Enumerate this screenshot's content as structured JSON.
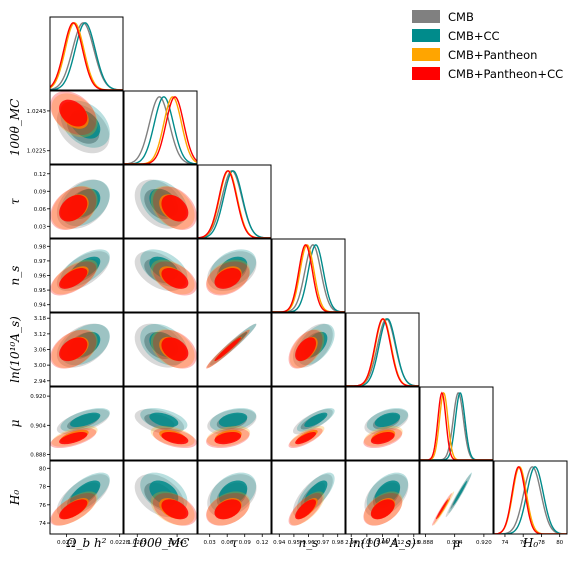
{
  "chart_data": {
    "type": "corner",
    "parameters": [
      {
        "label": "Ω_b h²",
        "xticks": [
          "0.0220",
          "0.0228"
        ],
        "yticks": [],
        "range": [
          0.02175,
          0.02285
        ],
        "tickvals": [
          0.022,
          0.0228
        ]
      },
      {
        "label": "100θ_MC",
        "xticks": [
          "1.0225",
          "1.0243"
        ],
        "yticks": [
          "1.0243",
          "1.0225"
        ],
        "range": [
          1.0219,
          1.0252
        ],
        "tickvals": [
          1.0225,
          1.0243
        ]
      },
      {
        "label": "τ",
        "xticks": [
          "0.03",
          "0.06",
          "0.09",
          "0.12"
        ],
        "yticks": [
          "0.12",
          "0.09",
          "0.06",
          "0.03"
        ],
        "range": [
          0.01,
          0.135
        ],
        "tickvals": [
          0.03,
          0.06,
          0.09,
          0.12
        ]
      },
      {
        "label": "n_s",
        "xticks": [
          "0.94",
          "0.95",
          "0.96",
          "0.97",
          "0.98"
        ],
        "yticks": [
          "0.98",
          "0.97",
          "0.96",
          "0.95",
          "0.94"
        ],
        "range": [
          0.935,
          0.985
        ],
        "tickvals": [
          0.94,
          0.95,
          0.96,
          0.97,
          0.98
        ]
      },
      {
        "label": "ln(10¹⁰A_s)",
        "xticks": [
          "2.94",
          "3.00",
          "3.06",
          "3.12",
          "3.18"
        ],
        "yticks": [
          "3.18",
          "3.12",
          "3.06",
          "3.00",
          "2.94"
        ],
        "range": [
          2.92,
          3.2
        ],
        "tickvals": [
          2.94,
          3.0,
          3.06,
          3.12,
          3.18
        ]
      },
      {
        "label": "μ",
        "xticks": [
          "0.888",
          "0.904",
          "0.920"
        ],
        "yticks": [
          "0.920",
          "0.904",
          "0.888"
        ],
        "range": [
          0.885,
          0.925
        ],
        "tickvals": [
          0.888,
          0.904,
          0.92
        ]
      },
      {
        "label": "H₀",
        "xticks": [
          "74",
          "76",
          "78",
          "80"
        ],
        "yticks": [
          "80",
          "78",
          "76",
          "74"
        ],
        "range": [
          72.8,
          80.8
        ],
        "tickvals": [
          74,
          76,
          78,
          80
        ]
      }
    ],
    "series": [
      {
        "name": "CMB",
        "color": "#808080",
        "mean": [
          0.02225,
          1.0235,
          0.068,
          0.963,
          3.075,
          0.906,
          77.0
        ],
        "sigma": [
          0.00016,
          0.00045,
          0.017,
          0.0055,
          0.034,
          0.0028,
          0.95
        ]
      },
      {
        "name": "CMB+CC",
        "color": "#008b8b",
        "mean": [
          0.02228,
          1.0237,
          0.07,
          0.965,
          3.079,
          0.907,
          77.3
        ],
        "sigma": [
          0.00015,
          0.00043,
          0.016,
          0.0052,
          0.032,
          0.0026,
          0.9
        ]
      },
      {
        "name": "CMB+Pantheon",
        "color": "#ffa500",
        "mean": [
          0.02212,
          1.0241,
          0.062,
          0.959,
          3.063,
          0.898,
          75.6
        ],
        "sigma": [
          0.00014,
          0.0004,
          0.015,
          0.0048,
          0.03,
          0.0023,
          0.75
        ]
      },
      {
        "name": "CMB+Pantheon+CC",
        "color": "#ff0000",
        "mean": [
          0.0221,
          1.0242,
          0.061,
          0.958,
          3.061,
          0.897,
          75.5
        ],
        "sigma": [
          0.00014,
          0.0004,
          0.015,
          0.0047,
          0.03,
          0.0022,
          0.72
        ]
      }
    ],
    "correlations": [
      [
        1,
        -0.35,
        0.35,
        0.6,
        0.4,
        0.6,
        0.65
      ],
      [
        -0.35,
        1,
        -0.35,
        -0.45,
        -0.35,
        -0.45,
        -0.4
      ],
      [
        0.35,
        -0.35,
        1,
        0.35,
        0.97,
        0.35,
        0.35
      ],
      [
        0.6,
        -0.45,
        0.35,
        1,
        0.5,
        0.75,
        0.7
      ],
      [
        0.4,
        -0.35,
        0.97,
        0.5,
        1,
        0.45,
        0.45
      ],
      [
        0.6,
        -0.45,
        0.35,
        0.75,
        0.45,
        1,
        0.98
      ],
      [
        0.65,
        -0.4,
        0.35,
        0.7,
        0.45,
        0.98,
        1
      ]
    ],
    "legend_placement": "top-right"
  }
}
